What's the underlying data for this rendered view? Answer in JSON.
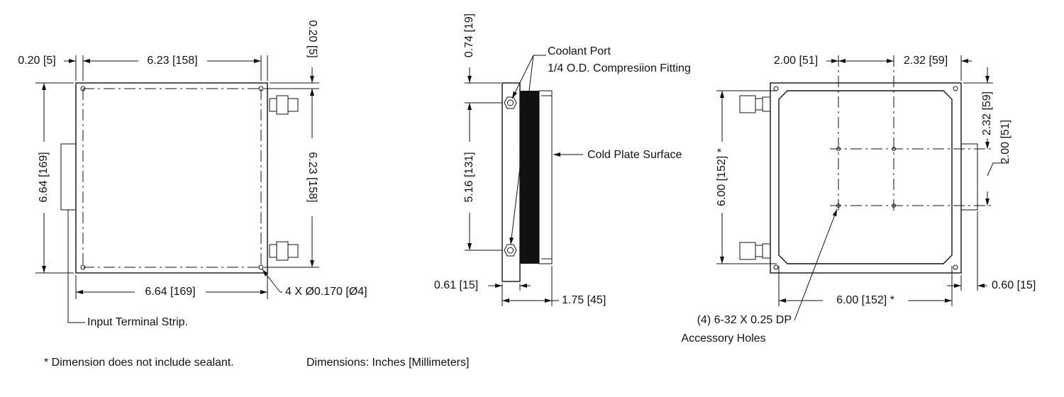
{
  "front_view": {
    "left_margin": "0.20 [5]",
    "top_width": "6.23 [158]",
    "top_margin": "0.20 [5]",
    "left_height": "6.64 [169]",
    "right_height": "6.23 [158]",
    "bottom_width": "6.64 [169]",
    "mount_holes": "4 X Ø0.170 [Ø4]",
    "terminal": "Input Terminal Strip."
  },
  "side_view": {
    "top_offset": "0.74 [19]",
    "port_title": "Coolant Port",
    "port_fitting": "1/4 O.D. Compresiion Fitting",
    "port_spacing": "5.16 [131]",
    "surface": "Cold Plate Surface",
    "body_depth": "0.61 [15]",
    "total_depth": "1.75 [45]"
  },
  "back_view": {
    "left_offset": "2.00 [51]",
    "hole_pitch_x": "2.32 [59]",
    "hole_pitch_y": "2.32 [59]",
    "top_offset": "2.00 [51]",
    "height": "6.00 [152] *",
    "width": "6.00 [152] *",
    "bracket": "0.60 [15]",
    "holes_spec": "(4) 6-32 X 0.25 DP",
    "holes_name": "Accessory Holes"
  },
  "notes": {
    "sealant": "* Dimension does not include sealant.",
    "units": "Dimensions: Inches [Millimeters]"
  }
}
